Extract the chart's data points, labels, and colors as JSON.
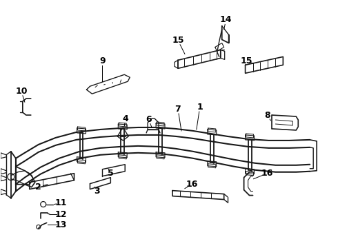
{
  "background_color": "#ffffff",
  "line_color": "#1a1a1a",
  "label_color": "#000000",
  "fig_width": 4.9,
  "fig_height": 3.6,
  "dpi": 100,
  "frame_scale": 1.0
}
